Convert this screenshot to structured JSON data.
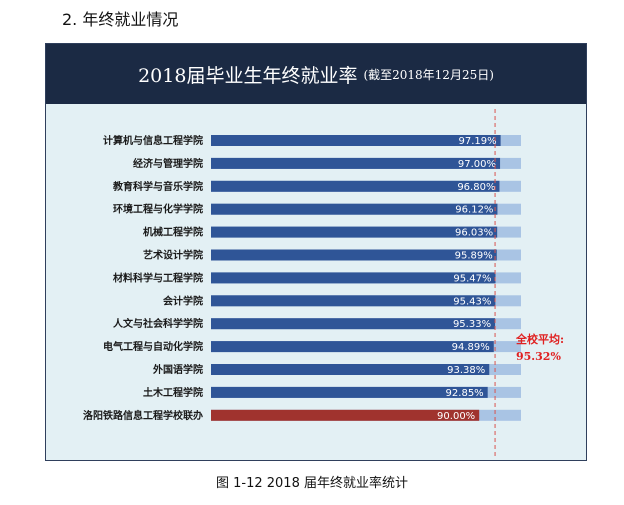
{
  "section_heading": "2. 年终就业情况",
  "caption": "图 1-12  2018 届年终就业率统计",
  "colors": {
    "title_bg": "#1b2a44",
    "panel_bg": "#e3f0f4",
    "bar_normal": "#2f5597",
    "bar_highlight": "#a0332e",
    "bar_track": "#a9c4e4",
    "avg_line": "#d9534f",
    "avg_text": "#e02020"
  },
  "chart_data": {
    "type": "bar",
    "orientation": "horizontal",
    "title": "2018届毕业生年终就业率",
    "subtitle": "(截至2018年12月25日)",
    "categories": [
      "计算机与信息工程学院",
      "经济与管理学院",
      "教育科学与音乐学院",
      "环境工程与化学学院",
      "机械工程学院",
      "艺术设计学院",
      "材料科学与工程学院",
      "会计学院",
      "人文与社会科学学院",
      "电气工程与自动化学院",
      "外国语学院",
      "土木工程学院",
      "洛阳铁路信息工程学校联办"
    ],
    "values": [
      97.19,
      97.0,
      96.8,
      96.12,
      96.03,
      95.89,
      95.47,
      95.43,
      95.33,
      94.89,
      93.38,
      92.85,
      90.0
    ],
    "value_labels": [
      "97.19%",
      "97.00%",
      "96.80%",
      "96.12%",
      "96.03%",
      "95.89%",
      "95.47%",
      "95.43%",
      "95.33%",
      "94.89%",
      "93.38%",
      "92.85%",
      "90.00%"
    ],
    "highlight_index": 12,
    "average": {
      "value": 95.32,
      "label": "全校平均:",
      "value_label": "95.32%"
    },
    "xlim": [
      0,
      100
    ],
    "grid": false
  }
}
